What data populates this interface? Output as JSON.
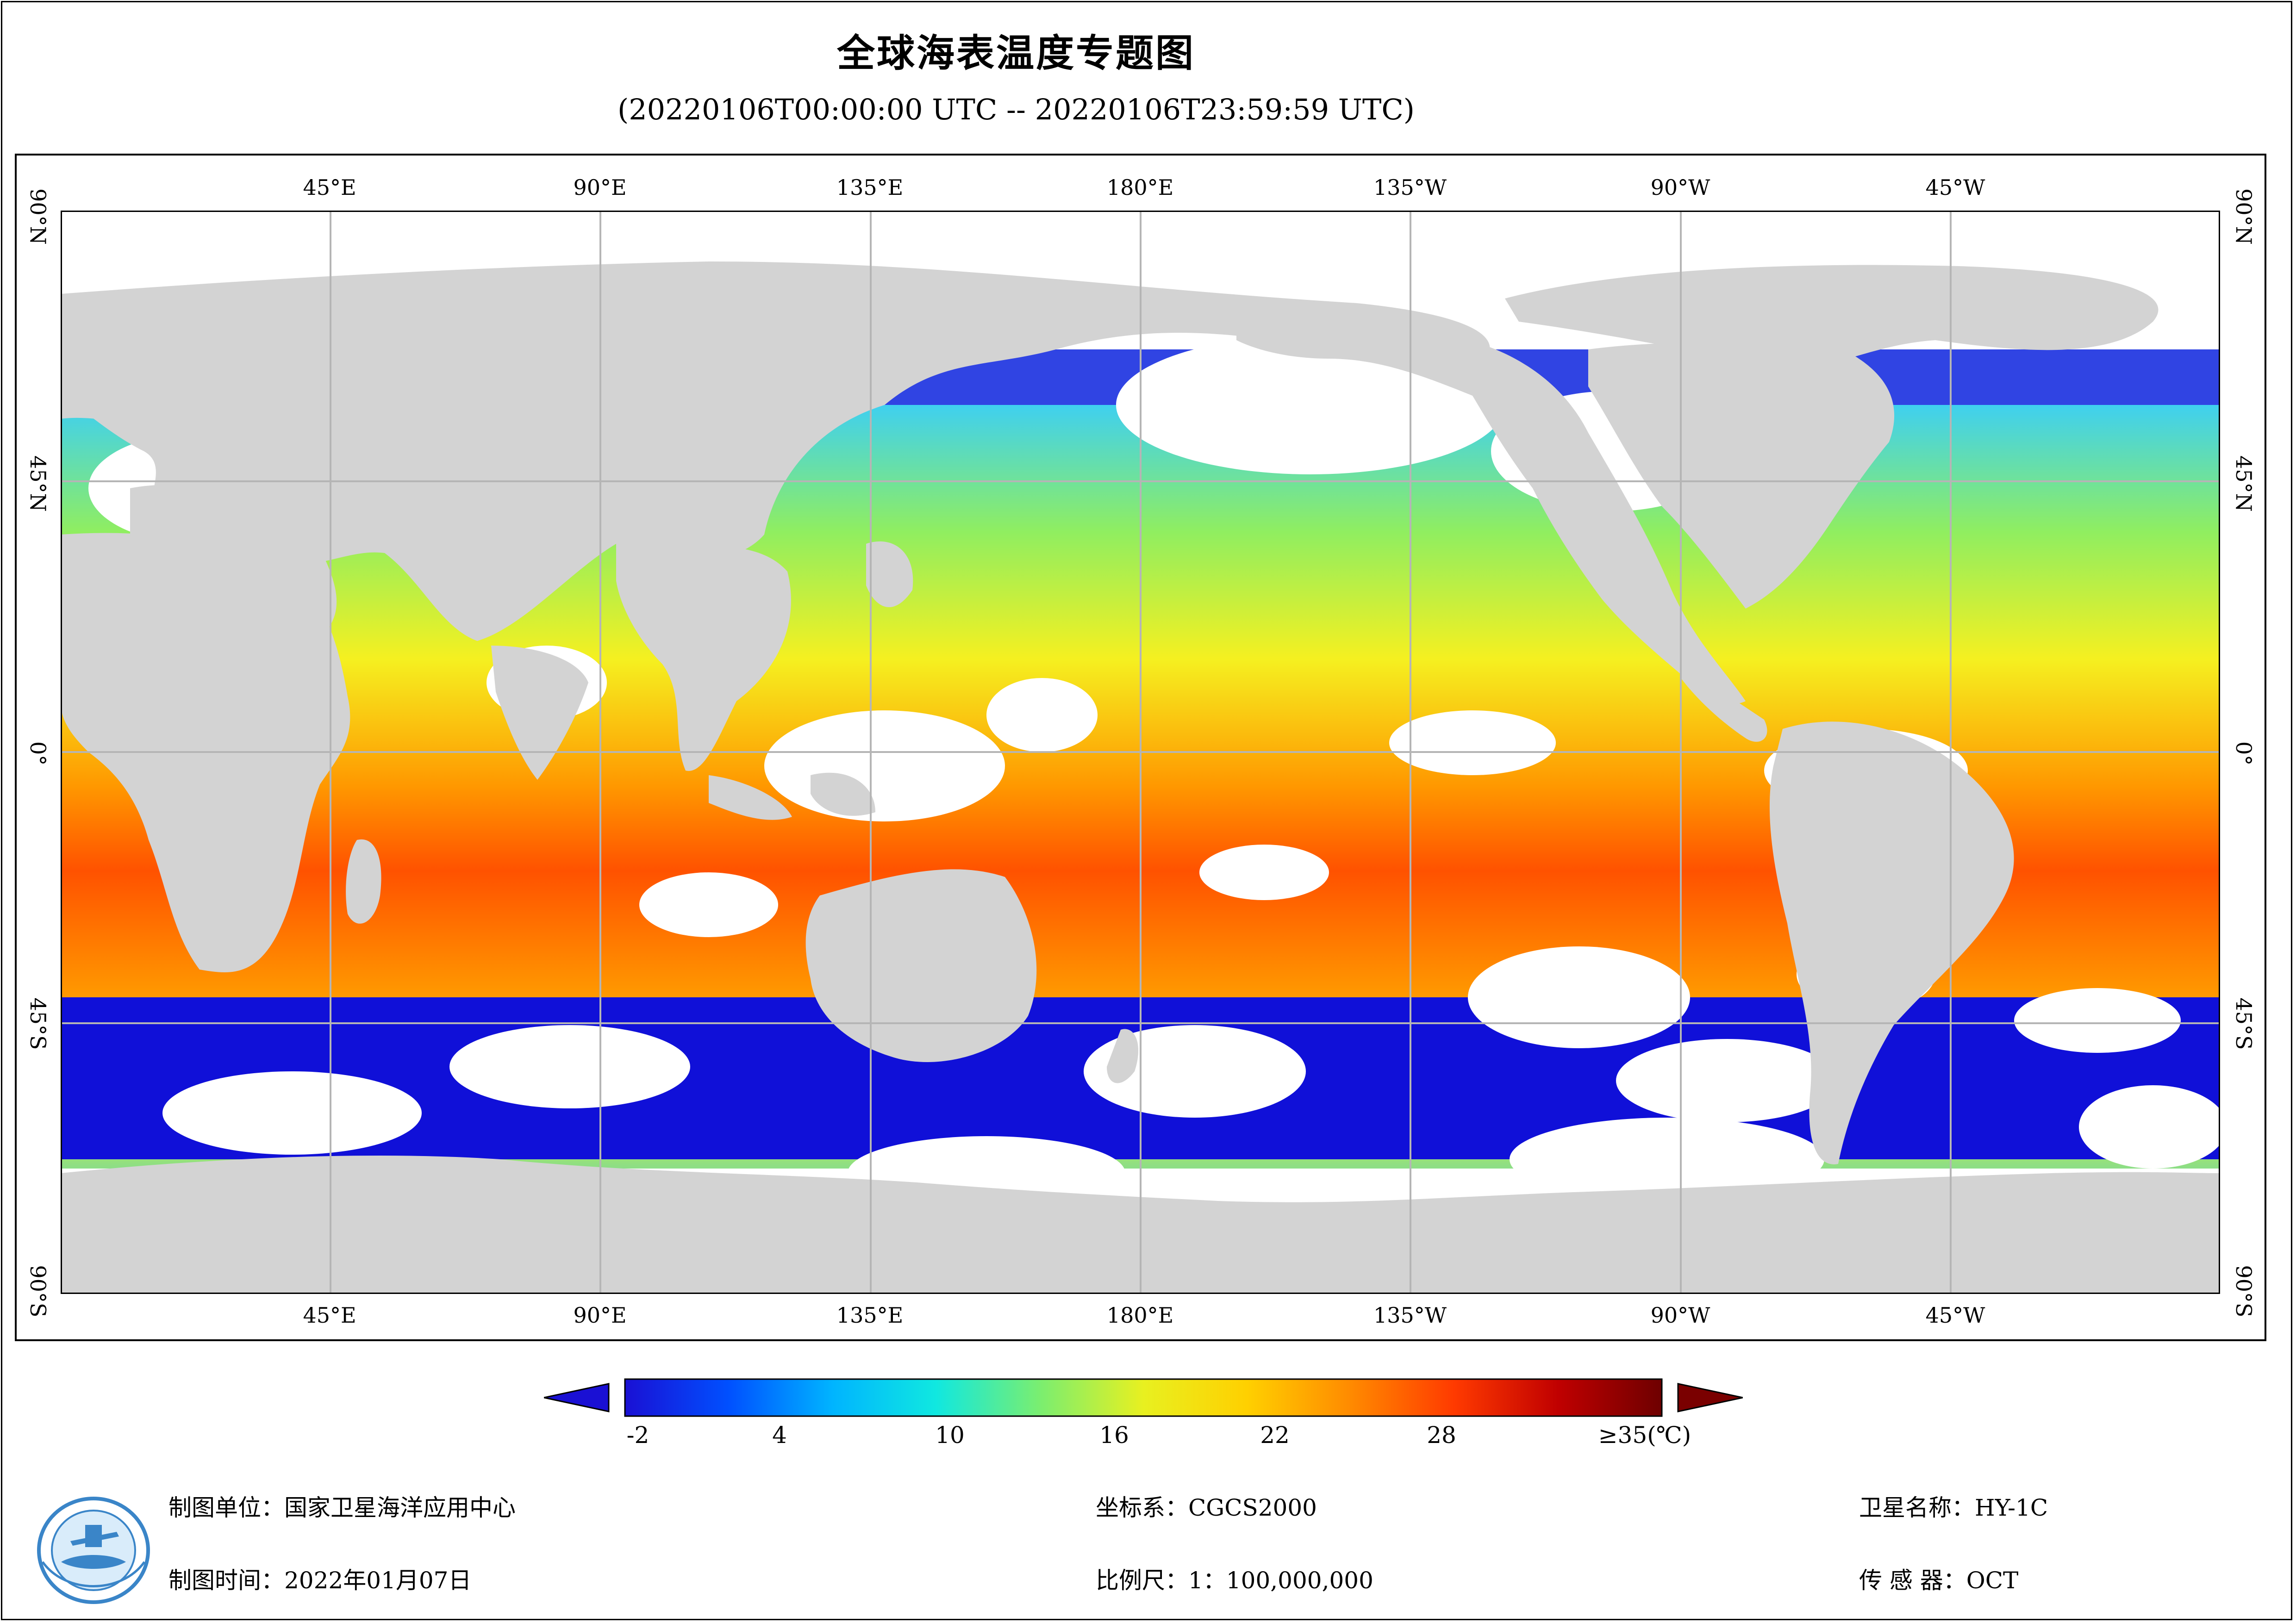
{
  "title": "全球海表温度专题图",
  "subtitle": "(20220106T00:00:00 UTC -- 20220106T23:59:59 UTC)",
  "map": {
    "longitude_labels": [
      "45°E",
      "90°E",
      "135°E",
      "180°E",
      "135°W",
      "90°W",
      "45°W"
    ],
    "latitude_labels": [
      "90°N",
      "45°N",
      "0°",
      "45°S",
      "90°S"
    ],
    "colors": {
      "land": "#d3d3d3",
      "cloud_nodata": "#ffffff",
      "graticule": "#b5b5b5"
    }
  },
  "colorbar": {
    "tick_labels": [
      "-2",
      "4",
      "10",
      "16",
      "22",
      "28",
      "≥35(℃)"
    ],
    "stops": [
      "#1a10d4",
      "#0050ff",
      "#00b4ff",
      "#10e8e0",
      "#7aee70",
      "#e8f020",
      "#ffd000",
      "#ff8a00",
      "#ff3a00",
      "#c00000",
      "#6e0000"
    ],
    "under_color": "#1a10d4",
    "over_color": "#7a0000"
  },
  "footer": {
    "unit": "制图单位：国家卫星海洋应用中心",
    "date": "制图时间：2022年01月07日",
    "crs": "坐标系：CGCS2000",
    "scale": "比例尺：1：100,000,000",
    "satellite": "卫星名称：HY-1C",
    "sensor": "传 感 器：OCT"
  },
  "logo": {
    "icon": "nsoas-logo"
  }
}
